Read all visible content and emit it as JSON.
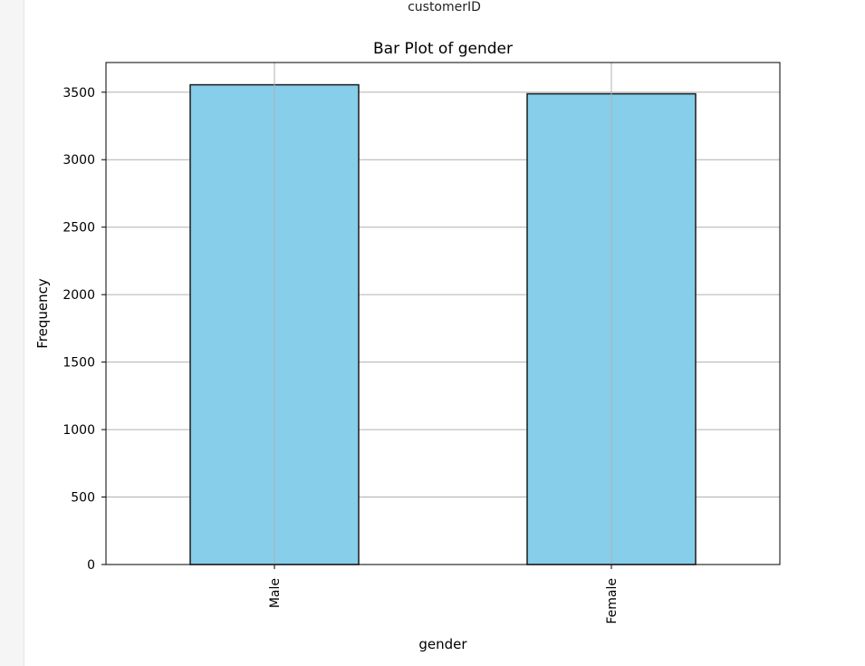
{
  "page": {
    "cell_label": "customerID"
  },
  "chart_data": {
    "type": "bar",
    "title": "Bar Plot of gender",
    "xlabel": "gender",
    "ylabel": "Frequency",
    "categories": [
      "Male",
      "Female"
    ],
    "values": [
      3555,
      3488
    ],
    "ylim": [
      0,
      3720
    ],
    "yticks": [
      0,
      500,
      1000,
      1500,
      2000,
      2500,
      3000,
      3500
    ],
    "grid": true,
    "bar_color": "#87CEEB",
    "edge_color": "#1a1a1a",
    "grid_color": "#b0b0b0"
  }
}
